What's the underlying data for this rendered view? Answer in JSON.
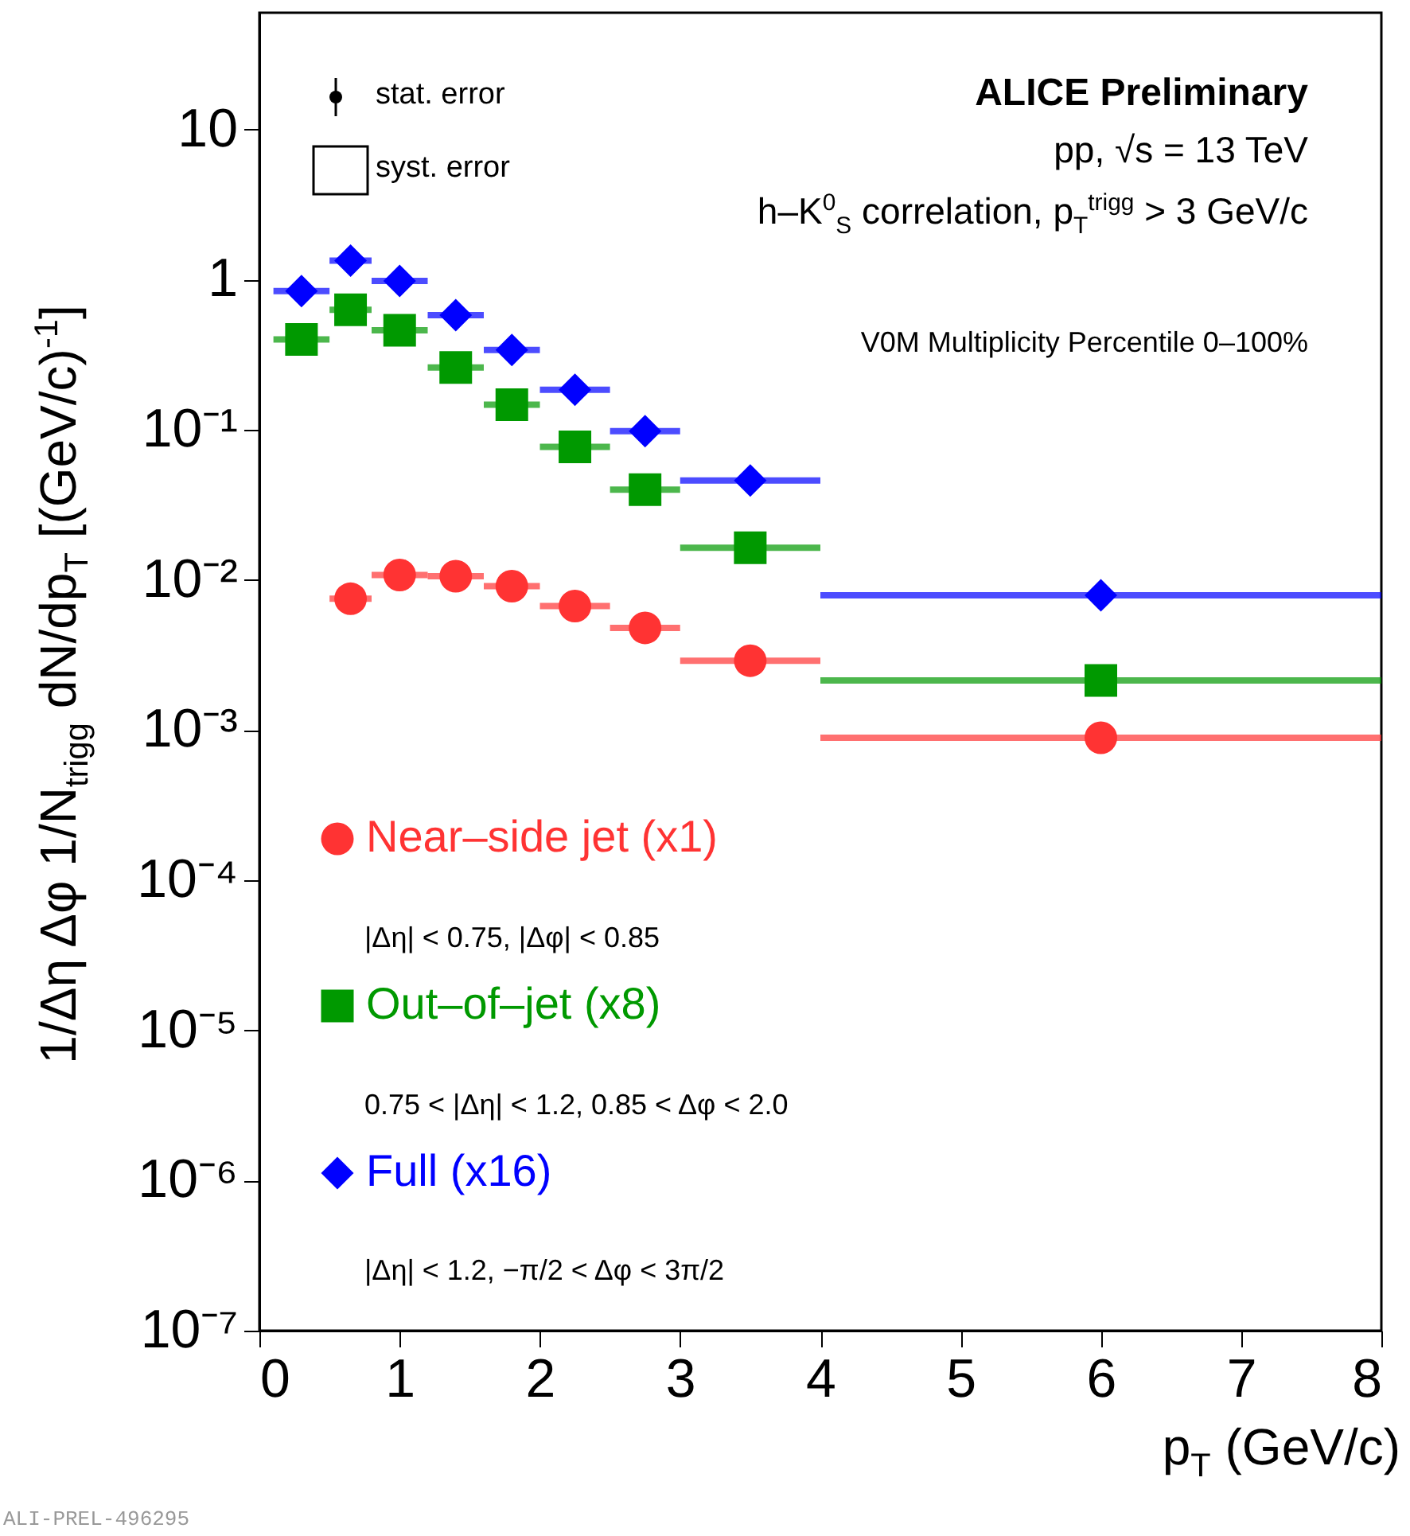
{
  "chart_data": {
    "type": "scatter",
    "title": "ALICE Preliminary",
    "xlabel": "p$_{T}$ (GeV/c)",
    "ylabel": "1/Δη Δφ 1/N$_{trigg}$ dN/dp$_{T}$ [(GeV/c)$^{-1}$]",
    "annotations": [
      "stat. error",
      "syst. error",
      "pp, √s = 13 TeV",
      "h–K$^{0}$$_{S}$ correlation, p$_{T}$$^{trigg}$ > 3 GeV/c",
      "V0M Multiplicity Percentile 0–100%",
      "|Δη| < 0.75, |Δφ| < 0.85",
      "0.75 < |Δη| < 1.2, 0.85 < Δφ < 2.0",
      "|Δη| < 1.2, −π/2 < Δφ < 3π/2",
      "ALI-PREL-496295"
    ],
    "x": [
      0.3,
      0.65,
      1.0,
      1.4,
      1.8,
      2.25,
      2.75,
      3.5,
      6.0
    ],
    "series": [
      {
        "name": "Near–side jet (x1)",
        "color": "#ff3333",
        "marker": "circle",
        "values": [
          null,
          0.0075,
          0.0108,
          0.0106,
          0.0091,
          0.0067,
          0.0048,
          0.0029,
          0.00089
        ],
        "xerrors": [
          null,
          0.15,
          0.2,
          0.2,
          0.2,
          0.25,
          0.25,
          0.5,
          2
        ]
      },
      {
        "name": "Out–of–jet (x8)",
        "color": "#009900",
        "marker": "square",
        "values": [
          0.4,
          0.63,
          0.46,
          0.26,
          0.147,
          0.077,
          0.04,
          0.0164,
          0.00214
        ],
        "xerrors": [
          0.2,
          0.15,
          0.2,
          0.2,
          0.2,
          0.25,
          0.25,
          0.5,
          2
        ]
      },
      {
        "name": "Full (x16)",
        "color": "#0000ff",
        "marker": "diamond",
        "values": [
          0.84,
          1.34,
          0.98,
          0.58,
          0.34,
          0.185,
          0.098,
          0.046,
          0.0079
        ],
        "xerrors": [
          0.2,
          0.15,
          0.2,
          0.2,
          0.2,
          0.25,
          0.25,
          0.5,
          2
        ]
      }
    ],
    "xlim": [
      0,
      8
    ],
    "xticks": [
      0,
      1,
      2,
      3,
      4,
      5,
      6,
      7,
      8
    ],
    "ylim": [
      1e-07,
      60
    ],
    "yticks": [
      {
        "value": 1e-07,
        "label": "10⁻⁷"
      },
      {
        "value": 1e-06,
        "label": "10⁻⁶"
      },
      {
        "value": 1e-05,
        "label": "10⁻⁵"
      },
      {
        "value": 0.0001,
        "label": "10⁻⁴"
      },
      {
        "value": 0.001,
        "label": "10⁻³"
      },
      {
        "value": 0.01,
        "label": "10⁻²"
      },
      {
        "value": 0.1,
        "label": "10⁻¹"
      },
      1,
      10
    ],
    "log": true,
    "legend": "bottom left"
  }
}
